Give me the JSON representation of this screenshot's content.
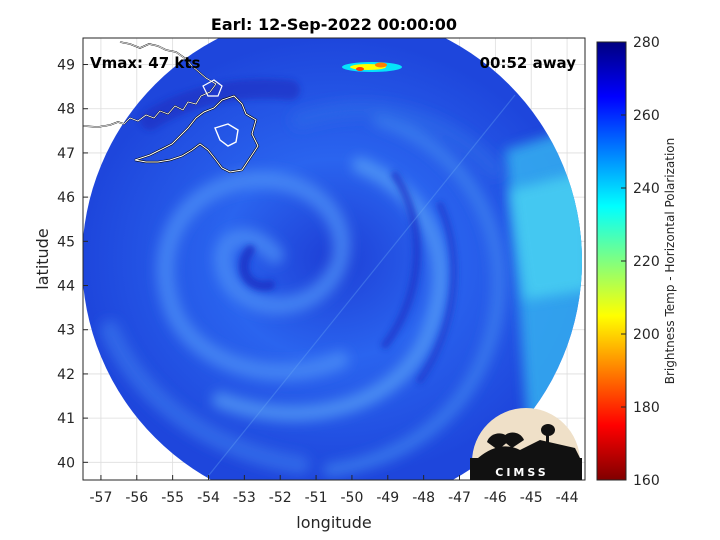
{
  "title": "Earl: 12-Sep-2022 00:00:00",
  "overlay": {
    "vmax": "Vmax: 47 kts",
    "time_away": "00:52 away"
  },
  "logo_text": "CIMSS",
  "chart_data": {
    "type": "heatmap",
    "title": "Earl: 12-Sep-2022 00:00:00",
    "xlabel": "longitude",
    "ylabel": "latitude",
    "xlim": [
      -57.5,
      -43.5
    ],
    "ylim": [
      39.6,
      49.6
    ],
    "xticks": [
      -57,
      -56,
      -55,
      -54,
      -53,
      -52,
      -51,
      -50,
      -49,
      -48,
      -47,
      -46,
      -45,
      -44
    ],
    "yticks": [
      40,
      41,
      42,
      43,
      44,
      45,
      46,
      47,
      48,
      49
    ],
    "grid": true,
    "swath": {
      "center_lon": -50.5,
      "center_lat": 44.6,
      "extent": "circular passive-microwave swath"
    },
    "storm_center": {
      "lon": -52.5,
      "lat": 44.9
    },
    "colorbar": {
      "label": "Brightness Temp - Horizontal Polarization",
      "min": 160,
      "max": 280,
      "ticks": [
        160,
        180,
        200,
        220,
        240,
        260,
        280
      ],
      "colormap": "jet"
    },
    "features": [
      {
        "name": "coast",
        "region": "Newfoundland / Avalon",
        "lon_range": [
          -57.5,
          -52.8
        ],
        "lat_range": [
          46.5,
          49.6
        ]
      },
      {
        "name": "warm-anomaly",
        "lon": -49.7,
        "lat": 49.0,
        "value_min": 190,
        "value_max": 215
      }
    ]
  },
  "colors": {
    "axis": "#262626",
    "grid": "#dddddd",
    "swath_base": "#1f4fe0"
  }
}
